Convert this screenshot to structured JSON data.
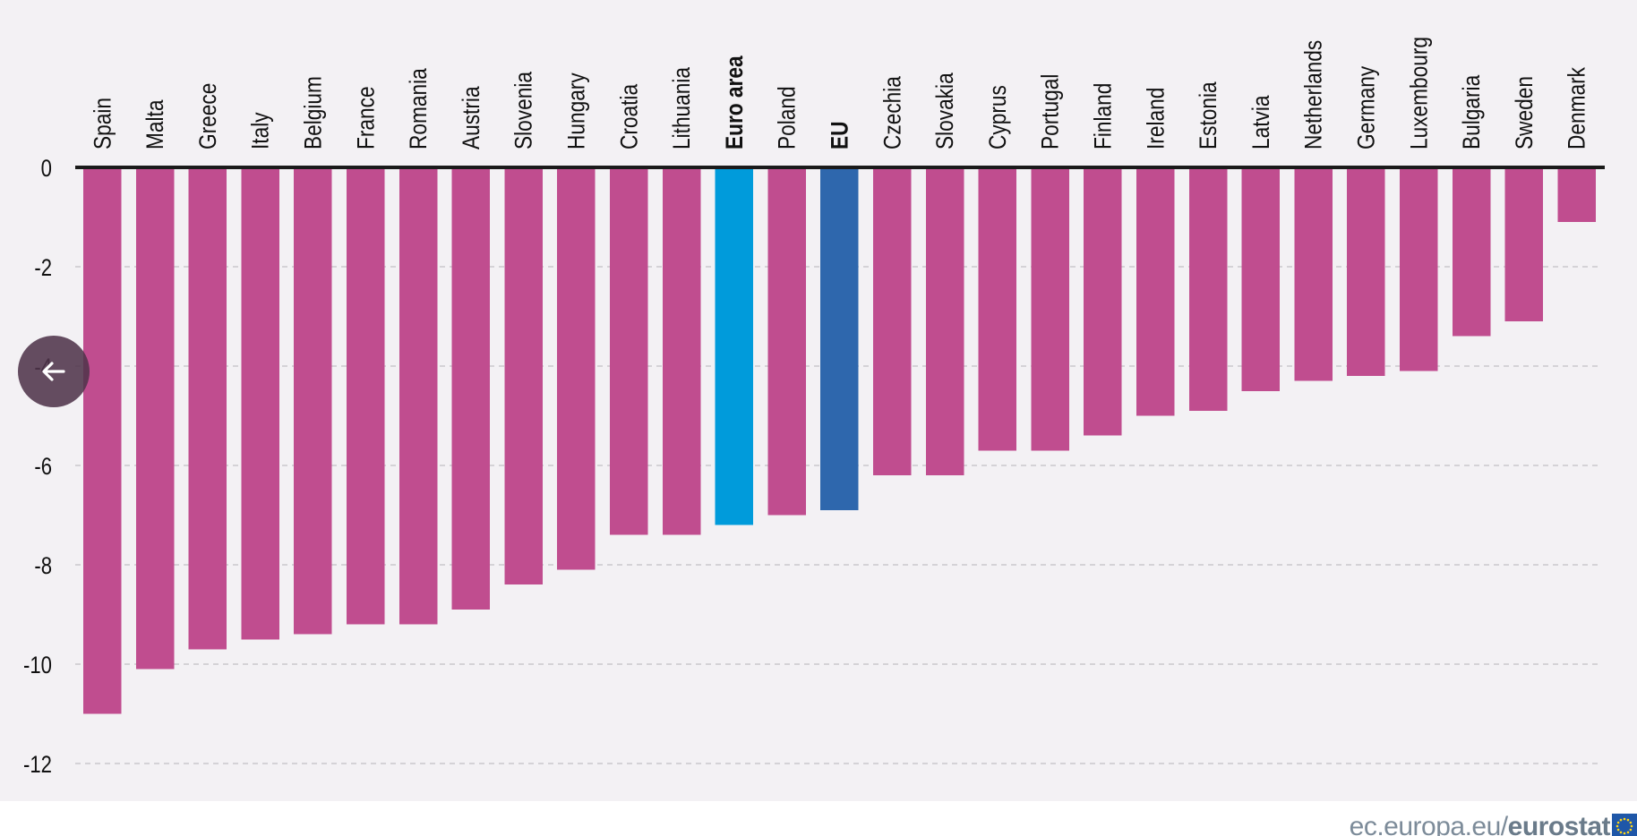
{
  "chart_data": {
    "type": "bar",
    "orientation": "vertical",
    "title": "",
    "xlabel": "",
    "ylabel": "",
    "ylim": [
      -12,
      0
    ],
    "yticks": [
      0,
      -2,
      -4,
      -6,
      -8,
      -10,
      -12
    ],
    "ytick_labels": [
      "0",
      "-2",
      "-4",
      "-6",
      "-8",
      "-10",
      "-12"
    ],
    "grid": true,
    "categories": [
      "Spain",
      "Malta",
      "Greece",
      "Italy",
      "Belgium",
      "France",
      "Romania",
      "Austria",
      "Slovenia",
      "Hungary",
      "Croatia",
      "Lithuania",
      "Euro area",
      "Poland",
      "EU",
      "Czechia",
      "Slovakia",
      "Cyprus",
      "Portugal",
      "Finland",
      "Ireland",
      "Estonia",
      "Latvia",
      "Netherlands",
      "Germany",
      "Luxembourg",
      "Bulgaria",
      "Sweden",
      "Denmark"
    ],
    "values": [
      -11.0,
      -10.1,
      -9.7,
      -9.5,
      -9.4,
      -9.2,
      -9.2,
      -8.9,
      -8.4,
      -8.1,
      -7.4,
      -7.4,
      -7.2,
      -7.0,
      -6.9,
      -6.2,
      -6.2,
      -5.7,
      -5.7,
      -5.4,
      -5.0,
      -4.9,
      -4.5,
      -4.3,
      -4.2,
      -4.1,
      -3.4,
      -3.1,
      -1.1
    ],
    "bold_categories": [
      "Euro area",
      "EU"
    ],
    "colors": {
      "default": "#c04d8f",
      "Euro area": "#009bdb",
      "EU": "#2e67ad"
    },
    "legend": "none"
  },
  "ui": {
    "back_button_icon": "arrow-left-icon",
    "footer": {
      "site_prefix": "ec.europa.eu/",
      "site_brand": "eurostat",
      "logo_icon": "eu-flag-icon"
    },
    "colors": {
      "panel_background": "#f3f1f4",
      "gridline": "#c9c7cb",
      "axis": "#1a1a1a"
    }
  }
}
